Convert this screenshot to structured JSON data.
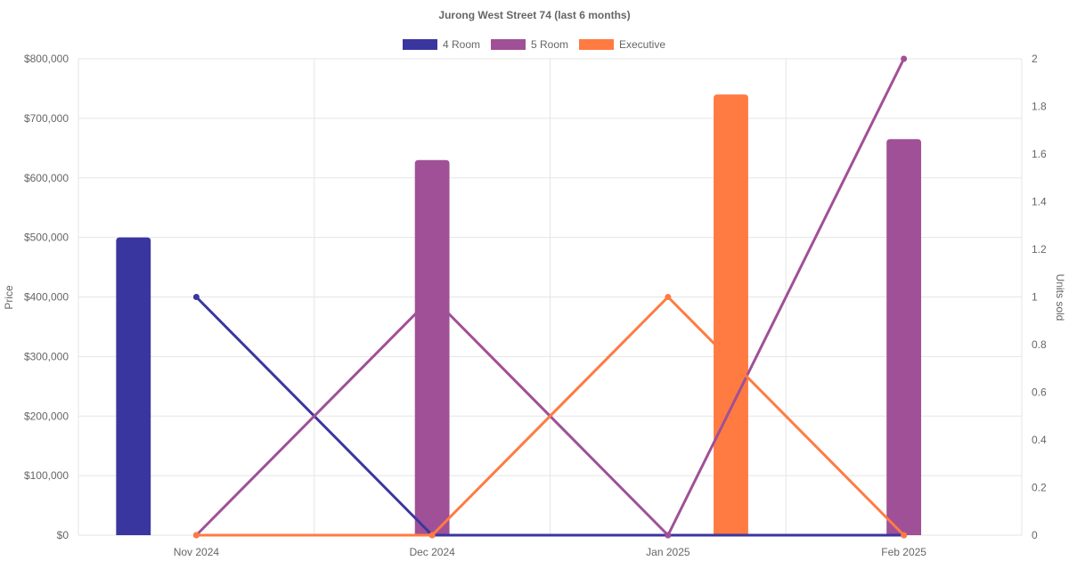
{
  "chart_data": {
    "type": "bar",
    "title": "Jurong West Street 74 (last 6 months)",
    "categories": [
      "Nov 2024",
      "Dec 2024",
      "Jan 2025",
      "Feb 2025"
    ],
    "ylabel": "Price",
    "y2label": "Units sold",
    "ylim": [
      0,
      800000
    ],
    "y2lim": [
      0,
      2
    ],
    "y_ticks": [
      "$0",
      "$100,000",
      "$200,000",
      "$300,000",
      "$400,000",
      "$500,000",
      "$600,000",
      "$700,000",
      "$800,000"
    ],
    "y2_ticks": [
      "0",
      "0.2",
      "0.4",
      "0.6",
      "0.8",
      "1",
      "1.2",
      "1.4",
      "1.6",
      "1.8",
      "2"
    ],
    "legend_position": "top",
    "grid": true,
    "series": [
      {
        "name": "4 Room",
        "color": "#3a36a0",
        "price": [
          500000,
          null,
          null,
          null
        ],
        "units": [
          1,
          0,
          0,
          0
        ]
      },
      {
        "name": "5 Room",
        "color": "#a05096",
        "price": [
          null,
          630000,
          null,
          665000
        ],
        "units": [
          0,
          1,
          0,
          2
        ]
      },
      {
        "name": "Executive",
        "color": "#ff7b42",
        "price": [
          null,
          null,
          740000,
          null
        ],
        "units": [
          0,
          0,
          1,
          0
        ]
      }
    ]
  }
}
